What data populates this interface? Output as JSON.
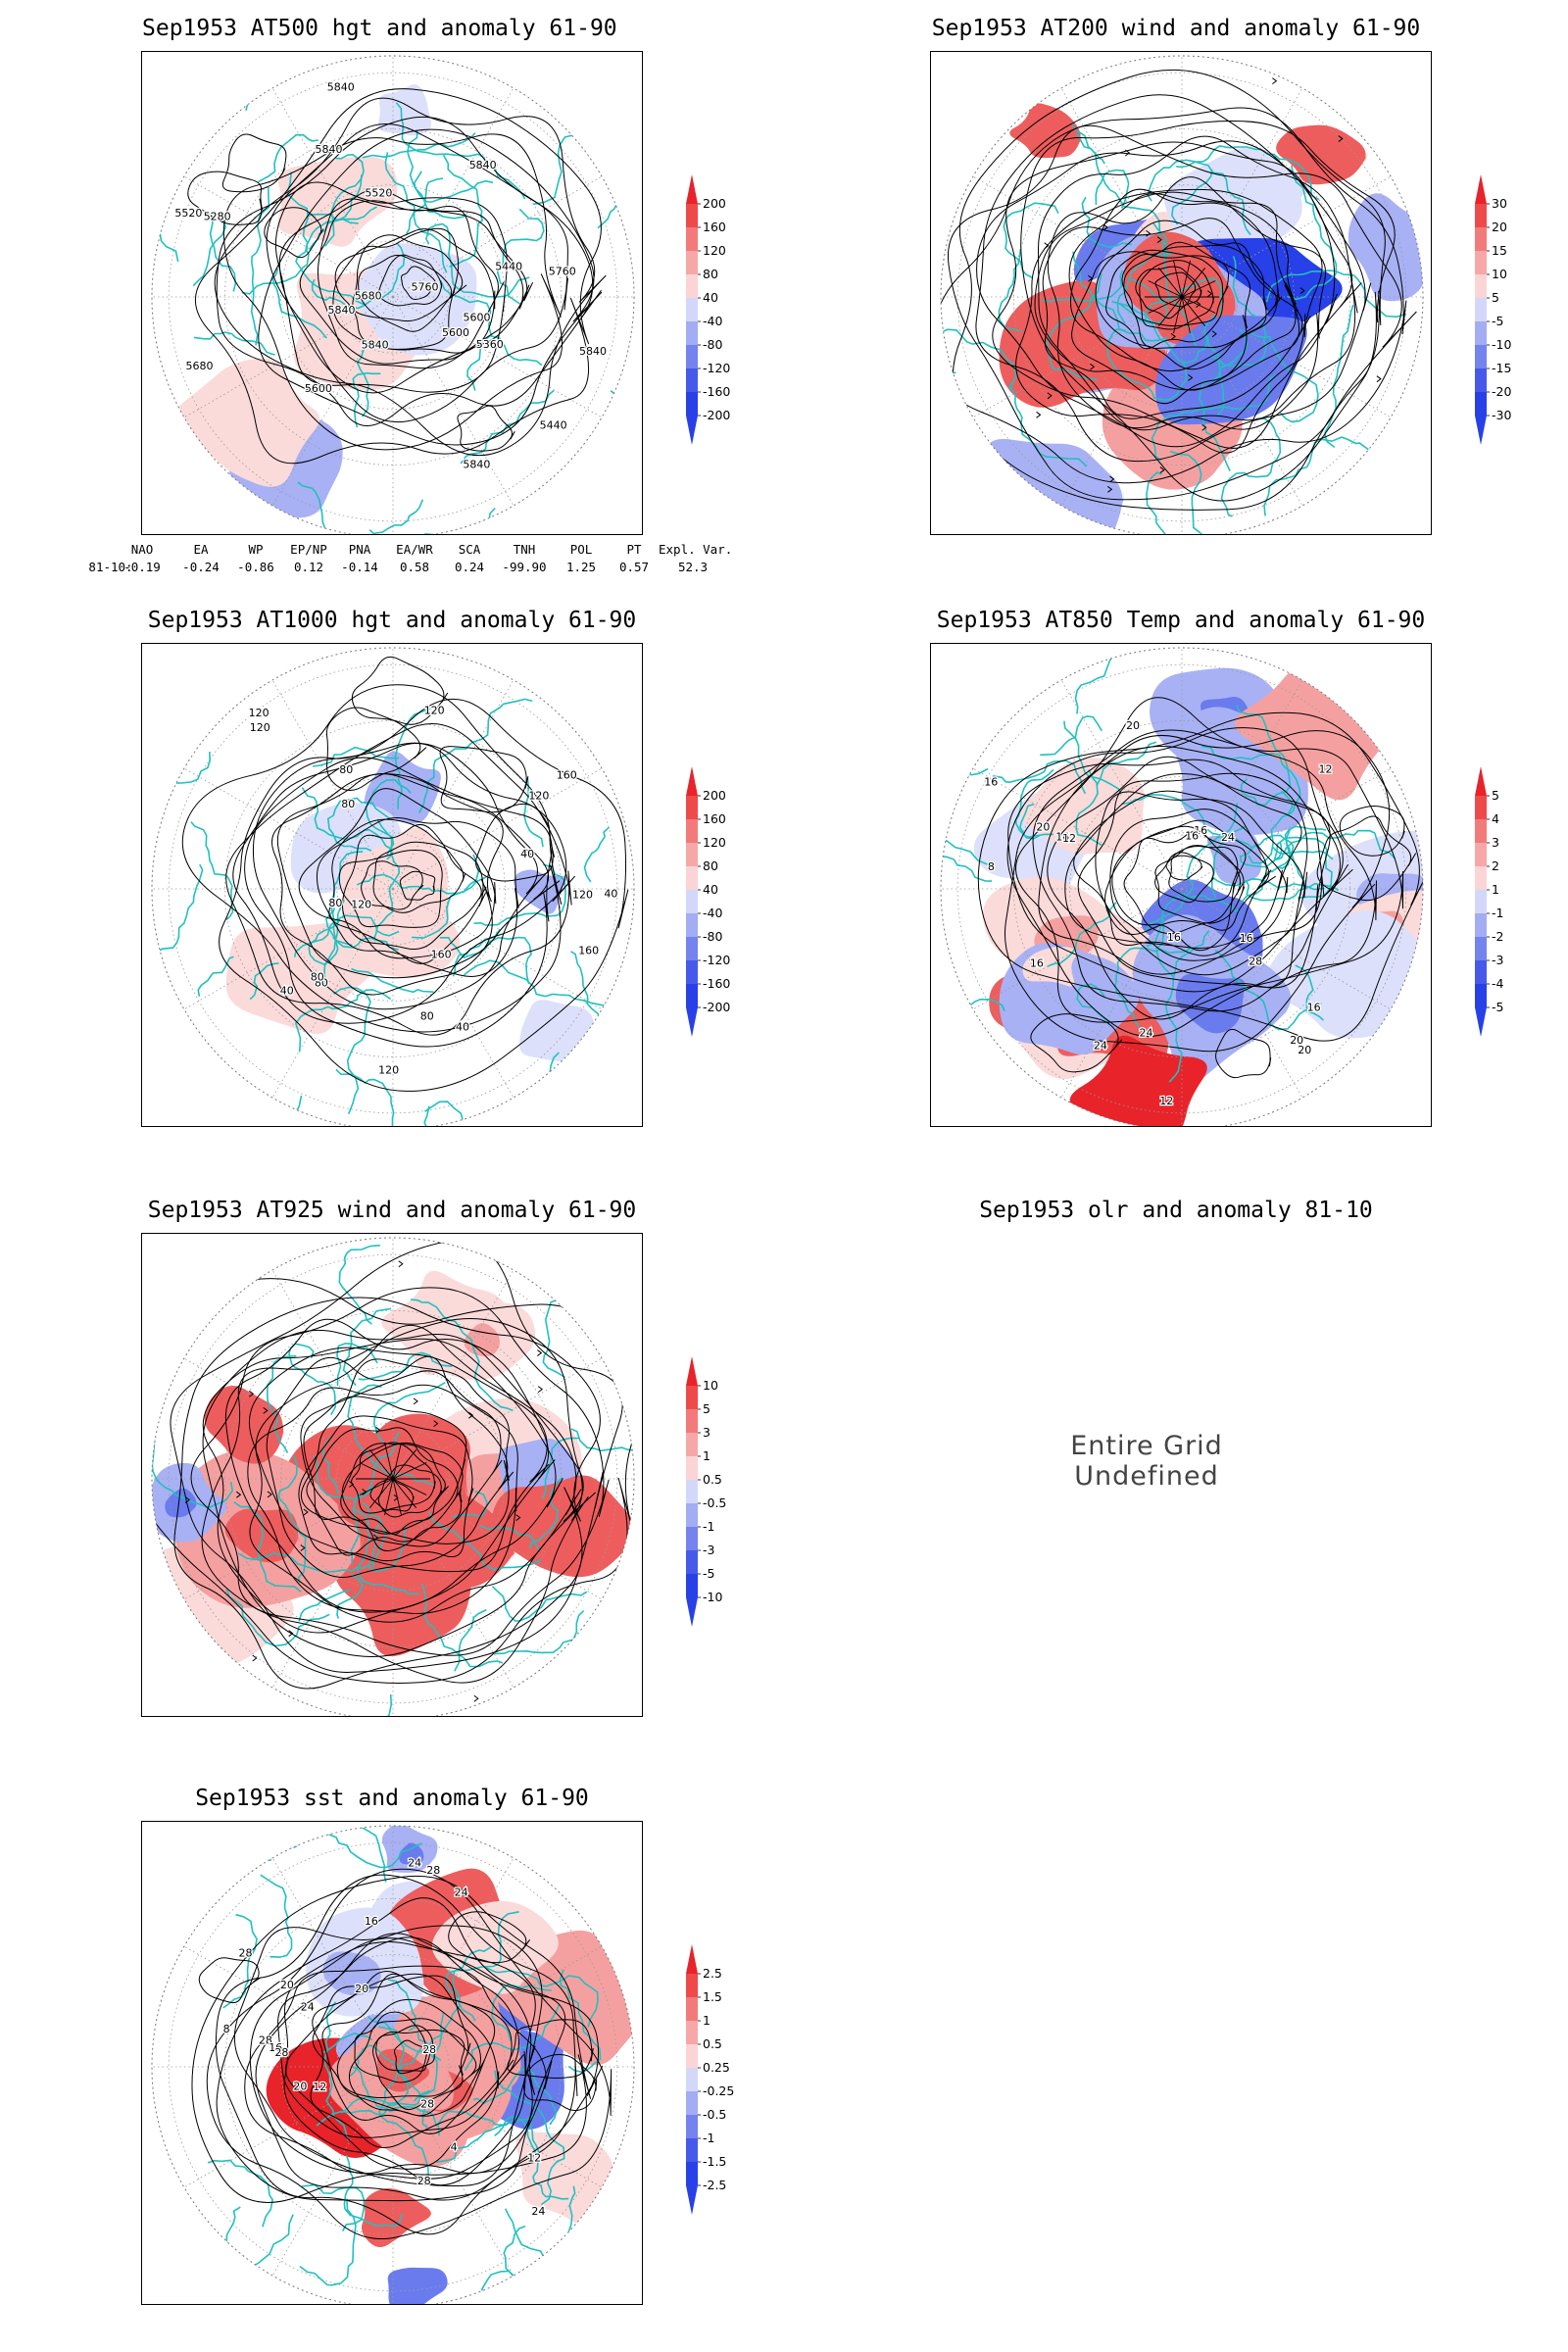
{
  "panels": [
    {
      "id": "z500",
      "title": "Sep1953 AT500 hgt and anomaly 61-90",
      "style": "height",
      "colorbar": [
        "200",
        "160",
        "120",
        "80",
        "40",
        "-40",
        "-80",
        "-120",
        "-160",
        "-200"
      ],
      "contour_labels": [
        "5840",
        "5840",
        "5840",
        "5840",
        "5840",
        "5840",
        "5760",
        "5680",
        "5600",
        "5520",
        "5440",
        "5600",
        "5440",
        "5520",
        "5360",
        "5280",
        "5600",
        "5680",
        "5760",
        "5840"
      ]
    },
    {
      "id": "u200",
      "title": "Sep1953 AT200 wind and anomaly 61-90",
      "style": "streamline",
      "colorbar": [
        "30",
        "20",
        "15",
        "10",
        "5",
        "-5",
        "-10",
        "-15",
        "-20",
        "-30"
      ],
      "contour_labels": []
    },
    {
      "id": "z1000",
      "title": "Sep1953 AT1000 hgt and anomaly 61-90",
      "style": "height",
      "colorbar": [
        "200",
        "160",
        "120",
        "80",
        "40",
        "-40",
        "-80",
        "-120",
        "-160",
        "-200"
      ],
      "contour_labels": [
        "120",
        "160",
        "120",
        "80",
        "160",
        "120",
        "80",
        "40",
        "120",
        "120",
        "80",
        "40",
        "160",
        "120",
        "40",
        "80",
        "40",
        "120",
        "80",
        "80"
      ]
    },
    {
      "id": "t850",
      "title": "Sep1953 AT850 Temp and anomaly 61-90",
      "style": "temp",
      "colorbar": [
        "5",
        "4",
        "3",
        "2",
        "1",
        "-1",
        "-2",
        "-3",
        "-4",
        "-5"
      ],
      "contour_labels": [
        "16",
        "12",
        "16",
        "8",
        "24",
        "20",
        "16",
        "12",
        "16",
        "20",
        "24",
        "16",
        "16",
        "28",
        "20",
        "16",
        "12",
        "16",
        "20",
        "24"
      ]
    },
    {
      "id": "u925",
      "title": "Sep1953 AT925 wind and anomaly 61-90",
      "style": "streamline",
      "colorbar": [
        "10",
        "5",
        "3",
        "1",
        "0.5",
        "-0.5",
        "-1",
        "-3",
        "-5",
        "-10"
      ],
      "contour_labels": []
    },
    {
      "id": "sst",
      "title": "Sep1953 sst and anomaly 61-90",
      "style": "sst",
      "colorbar": [
        "2.5",
        "1.5",
        "1",
        "0.5",
        "0.25",
        "-0.25",
        "-0.5",
        "-1",
        "-1.5",
        "-2.5"
      ],
      "contour_labels": [
        "28",
        "28",
        "24",
        "28",
        "20",
        "24",
        "16",
        "12",
        "28",
        "24",
        "20",
        "28",
        "8",
        "4",
        "12",
        "16",
        "20",
        "24",
        "28",
        "28"
      ]
    }
  ],
  "olr": {
    "title": "Sep1953 olr and anomaly 81-10",
    "message": "Entire Grid Undefined"
  },
  "teleconnections": {
    "headers": [
      "NAO",
      "EA",
      "WP",
      "EP/NP",
      "PNA",
      "EA/WR",
      "SCA",
      "TNH",
      "POL",
      "PT",
      "Expl. Var."
    ],
    "row_label": "81-10:",
    "values": [
      "-0.19",
      "-0.24",
      "-0.86",
      "0.12",
      "-0.14",
      "0.58",
      "0.24",
      "-99.90",
      "1.25",
      "0.57",
      "52.3"
    ]
  },
  "colors": {
    "coast": "#20c0c0",
    "positive": "#e8232a",
    "negative": "#2740e8"
  }
}
